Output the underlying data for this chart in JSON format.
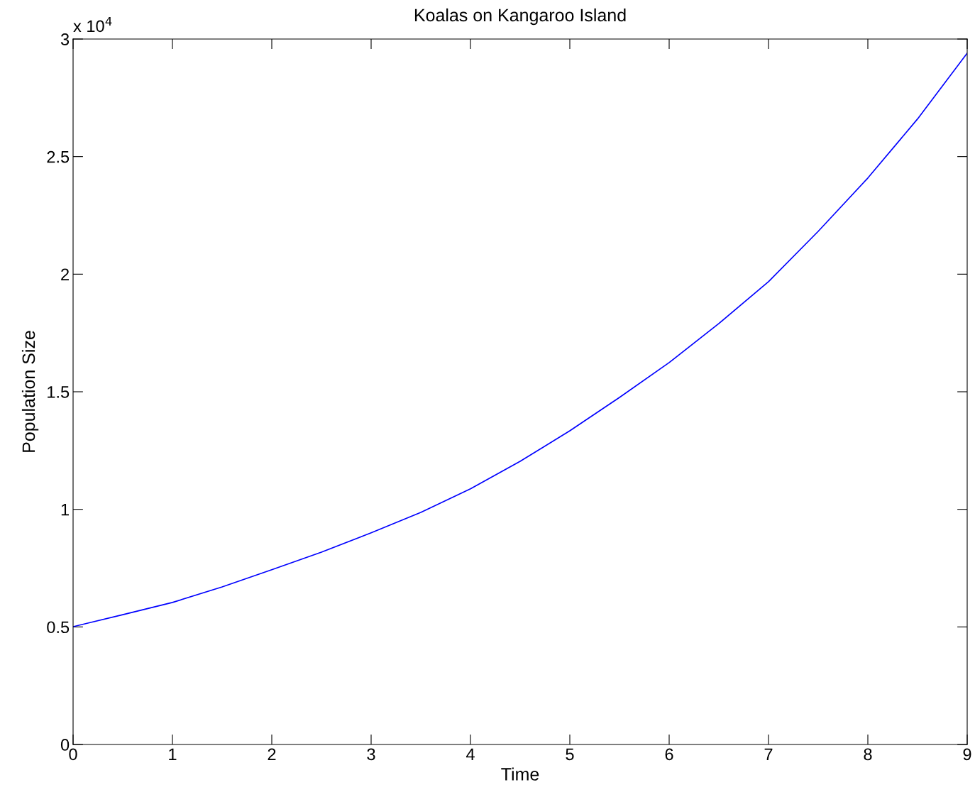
{
  "chart_data": {
    "type": "line",
    "title": "Koalas on Kangaroo Island",
    "xlabel": "Time",
    "ylabel": "Population Size",
    "x": [
      0,
      0.5,
      1,
      1.5,
      2,
      2.5,
      3,
      3.5,
      4,
      4.5,
      5,
      5.5,
      6,
      6.5,
      7,
      7.5,
      8,
      8.5,
      9
    ],
    "series": [
      {
        "color": "#0000ff",
        "values": [
          0.501,
          0.552,
          0.604,
          0.67,
          0.743,
          0.818,
          0.9,
          0.987,
          1.087,
          1.204,
          1.334,
          1.476,
          1.624,
          1.79,
          1.968,
          2.182,
          2.409,
          2.66,
          2.94
        ]
      }
    ],
    "xlim": [
      0,
      9
    ],
    "xticks": [
      0,
      1,
      2,
      3,
      4,
      5,
      6,
      7,
      8,
      9
    ],
    "ylim": [
      0,
      3
    ],
    "yticks": [
      0,
      0.5,
      1,
      1.5,
      2,
      2.5,
      3
    ],
    "annotations": [
      "x 10$^{4}$"
    ],
    "grid": false,
    "legend": false,
    "marker": "none",
    "line_style": "solid"
  }
}
